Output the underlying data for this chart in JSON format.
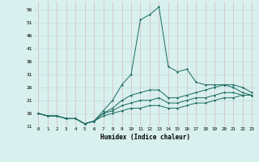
{
  "xlabel": "Humidex (Indice chaleur)",
  "background_color": "#d8f0ee",
  "grid_color": "#c0dedd",
  "line_color": "#1a6b60",
  "xlim": [
    -0.5,
    23.5
  ],
  "ylim": [
    11,
    59
  ],
  "yticks": [
    11,
    16,
    21,
    26,
    31,
    36,
    41,
    46,
    51,
    56
  ],
  "xticks": [
    0,
    1,
    2,
    3,
    4,
    5,
    6,
    7,
    8,
    9,
    10,
    11,
    12,
    13,
    14,
    15,
    16,
    17,
    18,
    19,
    20,
    21,
    22,
    23
  ],
  "series": [
    {
      "x": [
        0,
        1,
        2,
        3,
        4,
        5,
        6,
        7,
        8,
        9,
        10,
        11,
        12,
        13,
        14,
        15,
        16,
        17,
        18,
        19,
        20,
        21,
        22,
        23
      ],
      "y": [
        16,
        15,
        15,
        14,
        14,
        12,
        13,
        17,
        21,
        27,
        31,
        52,
        54,
        57,
        34,
        32,
        33,
        28,
        27,
        27,
        27,
        26,
        24,
        23
      ]
    },
    {
      "x": [
        0,
        1,
        2,
        3,
        4,
        5,
        6,
        7,
        8,
        9,
        10,
        11,
        12,
        13,
        14,
        15,
        16,
        17,
        18,
        19,
        20,
        21,
        22,
        23
      ],
      "y": [
        16,
        15,
        15,
        14,
        14,
        12,
        13,
        16,
        18,
        21,
        23,
        24,
        25,
        25,
        22,
        22,
        23,
        24,
        25,
        26,
        27,
        27,
        26,
        24
      ]
    },
    {
      "x": [
        0,
        1,
        2,
        3,
        4,
        5,
        6,
        7,
        8,
        9,
        10,
        11,
        12,
        13,
        14,
        15,
        16,
        17,
        18,
        19,
        20,
        21,
        22,
        23
      ],
      "y": [
        16,
        15,
        15,
        14,
        14,
        12,
        13,
        16,
        17,
        19,
        20,
        21,
        21,
        22,
        20,
        20,
        21,
        22,
        22,
        23,
        24,
        24,
        23,
        23
      ]
    },
    {
      "x": [
        0,
        1,
        2,
        3,
        4,
        5,
        6,
        7,
        8,
        9,
        10,
        11,
        12,
        13,
        14,
        15,
        16,
        17,
        18,
        19,
        20,
        21,
        22,
        23
      ],
      "y": [
        16,
        15,
        15,
        14,
        14,
        12,
        13,
        15,
        16,
        17,
        18,
        18,
        19,
        19,
        18,
        18,
        19,
        20,
        20,
        21,
        22,
        22,
        23,
        23
      ]
    }
  ]
}
